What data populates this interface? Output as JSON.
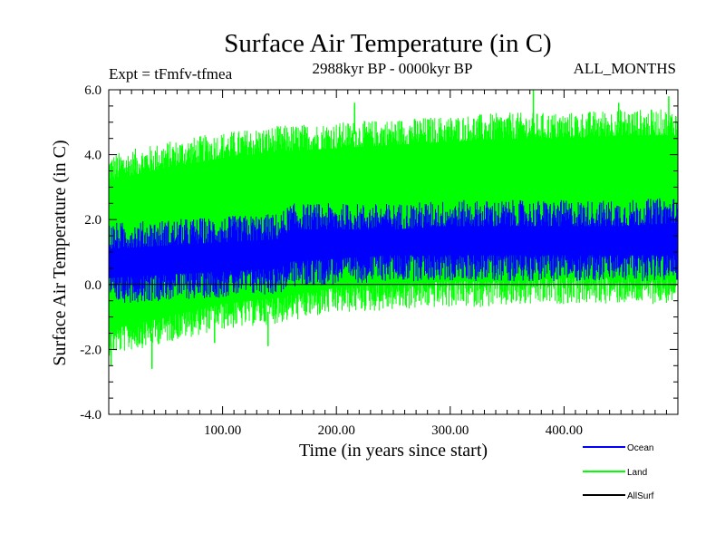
{
  "chart_data": {
    "type": "line",
    "title": "Surface Air Temperature (in C)",
    "subtitle_left": "Expt = tFmfv-tfmea",
    "subtitle_center": "2988kyr BP - 0000kyr BP",
    "subtitle_right": "ALL_MONTHS",
    "xlabel": "Time (in years since start)",
    "ylabel": "Surface Air Temperature (in C)",
    "xlim": [
      0,
      500
    ],
    "ylim": [
      -4.0,
      6.0
    ],
    "x_ticks": [
      {
        "value": 100,
        "label": "100.00"
      },
      {
        "value": 200,
        "label": "200.00"
      },
      {
        "value": 300,
        "label": "300.00"
      },
      {
        "value": 400,
        "label": "400.00"
      }
    ],
    "y_ticks": [
      {
        "value": -4.0,
        "label": "-4.0"
      },
      {
        "value": -2.0,
        "label": "-2.0"
      },
      {
        "value": 0.0,
        "label": "0.0"
      },
      {
        "value": 2.0,
        "label": "2.0"
      },
      {
        "value": 4.0,
        "label": "4.0"
      },
      {
        "value": 6.0,
        "label": "6.0"
      }
    ],
    "reference_line": 0.0,
    "series": [
      {
        "name": "Land",
        "color": "#00ff00",
        "envelope_x": [
          0,
          50,
          100,
          150,
          200,
          250,
          300,
          350,
          400,
          450,
          500
        ],
        "envelope_low": [
          -1.8,
          -1.4,
          -1.0,
          -0.8,
          -0.5,
          -0.4,
          -0.3,
          -0.3,
          -0.2,
          -0.2,
          -0.2
        ],
        "envelope_high": [
          3.6,
          4.0,
          4.3,
          4.5,
          4.6,
          4.7,
          4.8,
          4.9,
          4.9,
          5.0,
          5.0
        ],
        "extremes": [
          {
            "x": 2,
            "y": -2.5
          },
          {
            "x": 38,
            "y": -2.6
          },
          {
            "x": 93,
            "y": -1.8
          },
          {
            "x": 140,
            "y": -1.9
          },
          {
            "x": 216,
            "y": 5.6
          },
          {
            "x": 373,
            "y": 6.0
          },
          {
            "x": 448,
            "y": 5.6
          },
          {
            "x": 492,
            "y": 5.8
          }
        ]
      },
      {
        "name": "Ocean",
        "color": "#0000ff",
        "envelope_x": [
          0,
          50,
          100,
          150,
          160,
          200,
          250,
          300,
          350,
          400,
          450,
          500
        ],
        "envelope_low": [
          -0.2,
          -0.1,
          0.0,
          0.1,
          0.3,
          0.4,
          0.5,
          0.5,
          0.5,
          0.5,
          0.5,
          0.5
        ],
        "envelope_high": [
          1.5,
          1.6,
          1.7,
          1.8,
          2.1,
          2.1,
          2.1,
          2.2,
          2.2,
          2.2,
          2.2,
          2.3
        ]
      },
      {
        "name": "AllSurf",
        "color": "#000000",
        "envelope_x": [],
        "envelope_low": [],
        "envelope_high": []
      }
    ],
    "legend": {
      "placement": "bottom-right",
      "entries": [
        {
          "label": "Ocean",
          "color": "#0000ff"
        },
        {
          "label": "Land",
          "color": "#00ff00"
        },
        {
          "label": "AllSurf",
          "color": "#000000"
        }
      ]
    }
  }
}
